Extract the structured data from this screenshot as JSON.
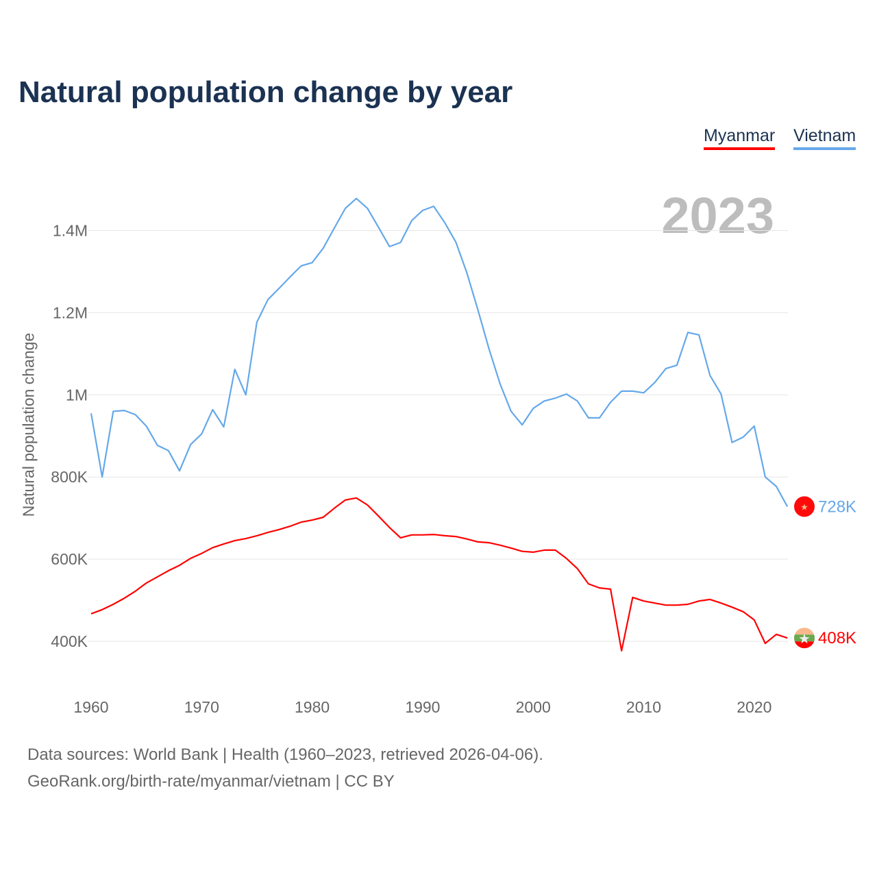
{
  "chart_data": {
    "type": "line",
    "title": "Natural population change by year",
    "xlabel": "",
    "ylabel": "Natural population change",
    "xlim": [
      1960,
      2023
    ],
    "ylim": [
      300000,
      1500000
    ],
    "grid": true,
    "legend_placement": "top-right",
    "current_year": "2023",
    "x_ticks": [
      1960,
      1970,
      1980,
      1990,
      2000,
      2010,
      2020
    ],
    "y_ticks": [
      {
        "value": 400000,
        "label": "400K"
      },
      {
        "value": 600000,
        "label": "600K"
      },
      {
        "value": 800000,
        "label": "800K"
      },
      {
        "value": 1000000,
        "label": "1M"
      },
      {
        "value": 1200000,
        "label": "1.2M"
      },
      {
        "value": 1400000,
        "label": "1.4M"
      }
    ],
    "x_start": 1960,
    "series": [
      {
        "name": "Myanmar",
        "color": "#ff0000",
        "end_label": "408K",
        "values_k": [
          467,
          477,
          490,
          505,
          522,
          542,
          557,
          572,
          585,
          602,
          614,
          628,
          637,
          645,
          650,
          657,
          665,
          672,
          680,
          690,
          695,
          702,
          724,
          744,
          749,
          732,
          705,
          677,
          652,
          659,
          659,
          660,
          657,
          655,
          649,
          642,
          640,
          634,
          627,
          619,
          617,
          622,
          622,
          602,
          577,
          540,
          530,
          527,
          377,
          507,
          498,
          493,
          488,
          488,
          490,
          498,
          502,
          493,
          483,
          472,
          452,
          395,
          417,
          408
        ]
      },
      {
        "name": "Vietnam",
        "color": "#64a8ea",
        "end_label": "728K",
        "values_k": [
          955,
          800,
          960,
          962,
          952,
          924,
          877,
          864,
          815,
          879,
          905,
          964,
          922,
          1062,
          1000,
          1177,
          1232,
          1259,
          1287,
          1314,
          1322,
          1357,
          1406,
          1454,
          1478,
          1454,
          1408,
          1361,
          1371,
          1424,
          1449,
          1459,
          1419,
          1372,
          1297,
          1207,
          1112,
          1027,
          960,
          927,
          967,
          985,
          992,
          1002,
          985,
          944,
          944,
          982,
          1009,
          1009,
          1005,
          1030,
          1064,
          1072,
          1152,
          1146,
          1047,
          1002,
          884,
          897,
          924,
          800,
          777,
          728
        ]
      }
    ]
  },
  "footer": {
    "line1": "Data sources: World Bank | Health (1960–2023, retrieved 2026-04-06).",
    "line2": "GeoRank.org/birth-rate/myanmar/vietnam | CC BY"
  }
}
